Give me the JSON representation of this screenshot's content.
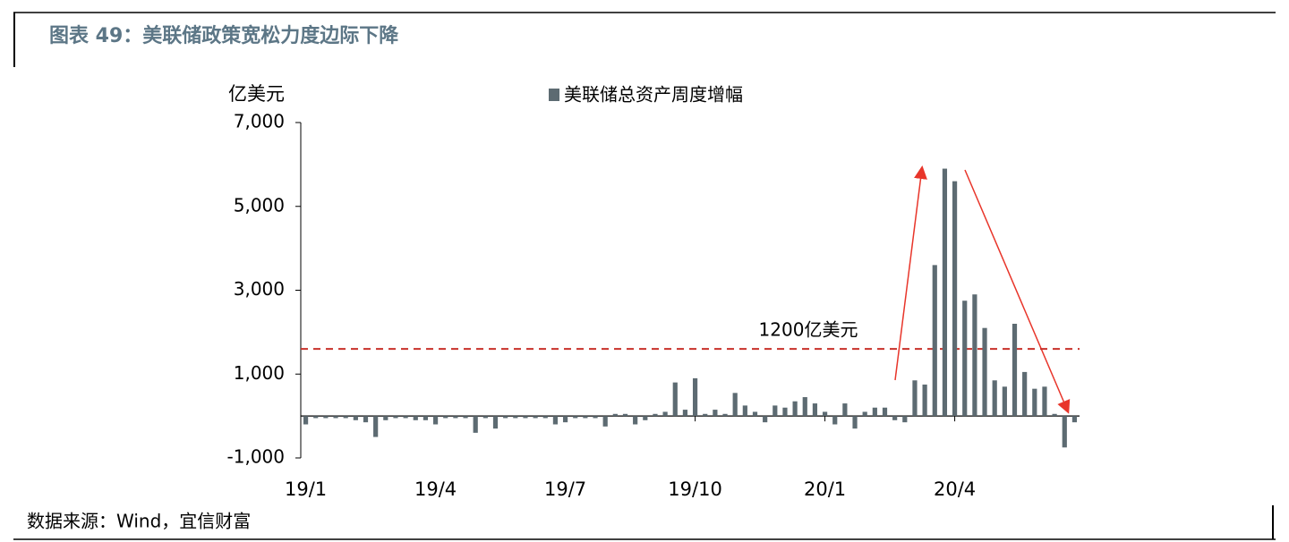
{
  "chart_data": {
    "type": "bar",
    "title": "图表 49：美联储政策宽松力度边际下降",
    "y_unit": "亿美元",
    "source": "数据来源：Wind，宜信财富",
    "annotation": "1200亿美元",
    "hline": {
      "value": 1600,
      "color": "#c8312a"
    },
    "categories": [
      "19/1",
      null,
      null,
      null,
      null,
      null,
      null,
      null,
      null,
      null,
      null,
      null,
      null,
      "19/4",
      null,
      null,
      null,
      null,
      null,
      null,
      null,
      null,
      null,
      null,
      null,
      null,
      "19/7",
      null,
      null,
      null,
      null,
      null,
      null,
      null,
      null,
      null,
      null,
      null,
      null,
      "19/10",
      null,
      null,
      null,
      null,
      null,
      null,
      null,
      null,
      null,
      null,
      null,
      null,
      "20/1",
      null,
      null,
      null,
      null,
      null,
      null,
      null,
      null,
      null,
      null,
      null,
      null,
      "20/4",
      null,
      null,
      null,
      null,
      null,
      null,
      null,
      null,
      null,
      null,
      null,
      null
    ],
    "series": [
      {
        "name": "美联储总资产周度增幅",
        "color": "#5d6b72",
        "values": [
          -200,
          -50,
          -50,
          -50,
          -50,
          -100,
          -150,
          -500,
          -100,
          -50,
          -50,
          -100,
          -100,
          -200,
          -50,
          -50,
          -50,
          -400,
          -50,
          -300,
          -50,
          -50,
          -50,
          -50,
          -50,
          -200,
          -150,
          -50,
          -50,
          -50,
          -250,
          50,
          50,
          -200,
          -100,
          50,
          100,
          800,
          150,
          900,
          50,
          150,
          50,
          550,
          250,
          100,
          -150,
          250,
          200,
          350,
          450,
          300,
          100,
          -200,
          300,
          -300,
          100,
          200,
          200,
          -100,
          -150,
          850,
          750,
          3600,
          5900,
          5600,
          2750,
          2900,
          2100,
          850,
          700,
          2200,
          1050,
          650,
          700,
          50,
          -750,
          -150
        ]
      }
    ],
    "ylim": [
      -1000,
      7000
    ],
    "yticks": [
      {
        "value": -1000,
        "label": "-1,000"
      },
      {
        "value": 1000,
        "label": "1,000"
      },
      {
        "value": 3000,
        "label": "3,000"
      },
      {
        "value": 5000,
        "label": "5,000"
      },
      {
        "value": 7000,
        "label": "7,000"
      }
    ]
  }
}
